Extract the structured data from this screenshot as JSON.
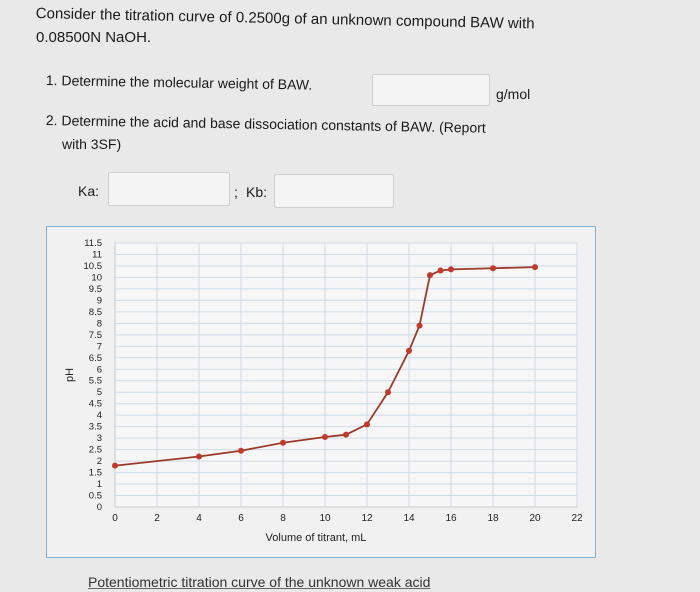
{
  "question": {
    "line1": "Consider the titration curve of 0.2500g of an unknown compound BAW with",
    "line2": "0.08500N NaOH."
  },
  "items": [
    {
      "number": "1.",
      "text": "Determine the molecular weight of BAW.",
      "unit": "g/mol"
    },
    {
      "number": "2.",
      "text": "Determine the acid and base dissociation constants of BAW. (Report",
      "text2": "with 3SF)"
    }
  ],
  "answers": {
    "mw_value": "",
    "ka_label": "Ka:",
    "ka_value": "",
    "separator": ";",
    "kb_label": "Kb:",
    "kb_value": ""
  },
  "caption": "Potentiometric titration curve of the unknown weak acid",
  "chart_data": {
    "type": "line",
    "xlabel": "Volume of titrant, mL",
    "ylabel": "pH",
    "xlim": [
      0,
      22
    ],
    "ylim": [
      0,
      11.5
    ],
    "x_ticks": [
      "0",
      "2",
      "4",
      "6",
      "8",
      "10",
      "12",
      "14",
      "16",
      "18",
      "20",
      "22"
    ],
    "y_ticks": [
      "0",
      "0.5",
      "1",
      "1.5",
      "2",
      "2.5",
      "3",
      "3.5",
      "4",
      "4.5",
      "5",
      "5.5",
      "6",
      "6.5",
      "7",
      "7.5",
      "8",
      "8.5",
      "9",
      "9.5",
      "10",
      "10.5",
      "11",
      "11.5"
    ],
    "grid": true,
    "line_color": "#9b3a2a",
    "point_color": "#c0392b",
    "series": [
      {
        "x": [
          0,
          4,
          6,
          8,
          10,
          11,
          12,
          13,
          14,
          14.5,
          15,
          15.5,
          16,
          18,
          20
        ],
        "y": [
          1.8,
          2.2,
          2.45,
          2.8,
          3.05,
          3.15,
          3.6,
          5.0,
          6.8,
          7.9,
          10.1,
          10.3,
          10.35,
          10.4,
          10.45
        ]
      }
    ]
  }
}
